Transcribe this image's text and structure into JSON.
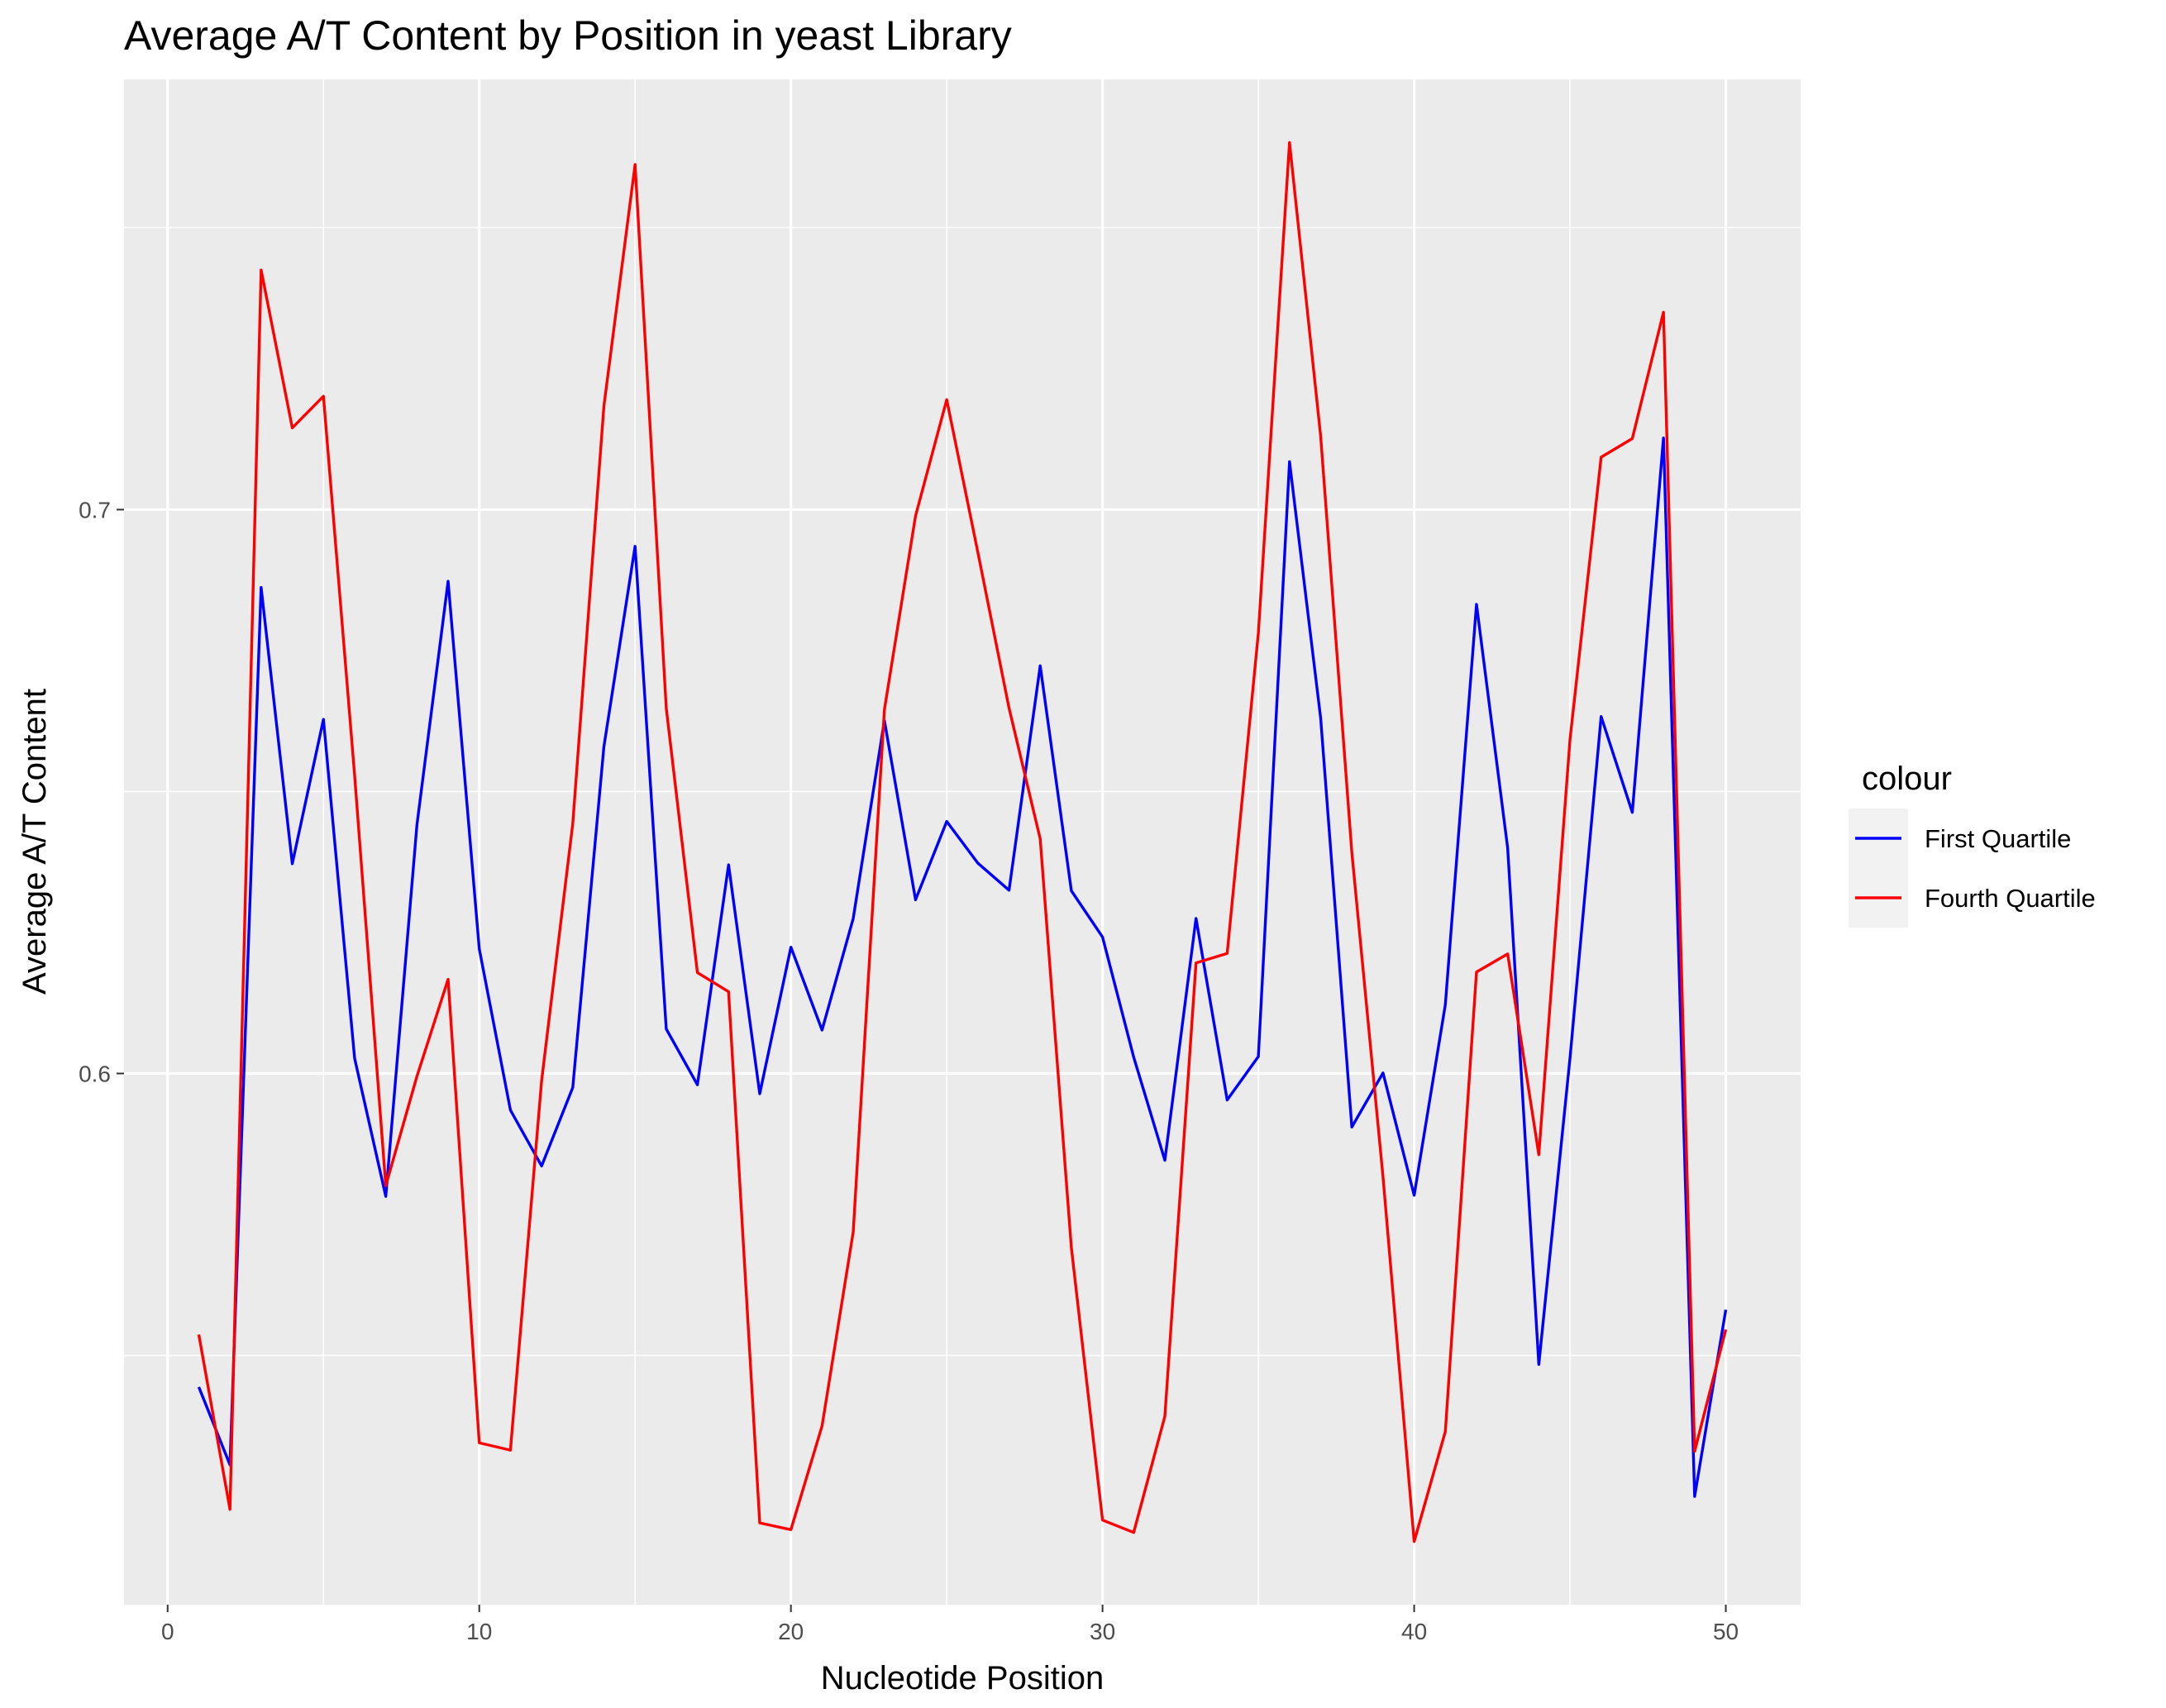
{
  "chart_data": {
    "type": "line",
    "title": "Average A/T Content by Position in yeast Library",
    "xlabel": "Nucleotide Position",
    "ylabel": "Average A/T Content",
    "xlim": [
      -1.4,
      52.4
    ],
    "ylim": [
      0.5058,
      0.7763
    ],
    "x_ticks": [
      0,
      10,
      20,
      30,
      40,
      50
    ],
    "x_tick_labels": [
      "0",
      "10",
      "20",
      "30",
      "40",
      "50"
    ],
    "y_ticks": [
      0.6,
      0.7
    ],
    "y_tick_labels": [
      "0.6",
      "0.7"
    ],
    "y_minor_ticks": [
      0.55,
      0.65,
      0.75
    ],
    "grid": true,
    "legend": {
      "title": "colour",
      "position": "right"
    },
    "x": [
      1,
      2,
      3,
      4,
      5,
      6,
      7,
      8,
      9,
      10,
      11,
      12,
      13,
      14,
      15,
      16,
      17,
      18,
      19,
      20,
      21,
      22,
      23,
      24,
      25,
      26,
      27,
      28,
      29,
      30,
      31,
      32,
      33,
      34,
      35,
      36,
      37,
      38,
      39,
      40,
      41,
      42,
      43,
      44,
      45,
      46,
      47,
      48,
      49,
      50
    ],
    "series": [
      {
        "name": "First Quartile",
        "color": "#0000ff",
        "values": [
          0.5444,
          0.5306,
          0.6862,
          0.6372,
          0.6628,
          0.6027,
          0.5782,
          0.6441,
          0.6873,
          0.6221,
          0.5935,
          0.5836,
          0.5975,
          0.658,
          0.6935,
          0.6079,
          0.598,
          0.637,
          0.5964,
          0.6224,
          0.6077,
          0.6275,
          0.6626,
          0.6308,
          0.6447,
          0.6373,
          0.6325,
          0.6723,
          0.6324,
          0.6242,
          0.6029,
          0.5846,
          0.6275,
          0.5953,
          0.603,
          0.7085,
          0.663,
          0.5905,
          0.6001,
          0.5784,
          0.6122,
          0.6832,
          0.64,
          0.5484,
          0.6027,
          0.6633,
          0.6463,
          0.7127,
          0.525,
          0.5581
        ]
      },
      {
        "name": "Fourth Quartile",
        "color": "#ff0000",
        "values": [
          0.5537,
          0.5227,
          0.7425,
          0.7145,
          0.7201,
          0.6529,
          0.5801,
          0.5995,
          0.6167,
          0.5345,
          0.5332,
          0.5987,
          0.6443,
          0.7184,
          0.7612,
          0.6648,
          0.6179,
          0.6145,
          0.5203,
          0.5191,
          0.5375,
          0.5719,
          0.6645,
          0.6989,
          0.7195,
          0.6924,
          0.6648,
          0.6416,
          0.5691,
          0.5208,
          0.5186,
          0.5392,
          0.6196,
          0.6213,
          0.6781,
          0.7651,
          0.713,
          0.6392,
          0.5817,
          0.517,
          0.5365,
          0.618,
          0.6212,
          0.5856,
          0.6592,
          0.7093,
          0.7126,
          0.735,
          0.533,
          0.5546
        ]
      }
    ]
  }
}
